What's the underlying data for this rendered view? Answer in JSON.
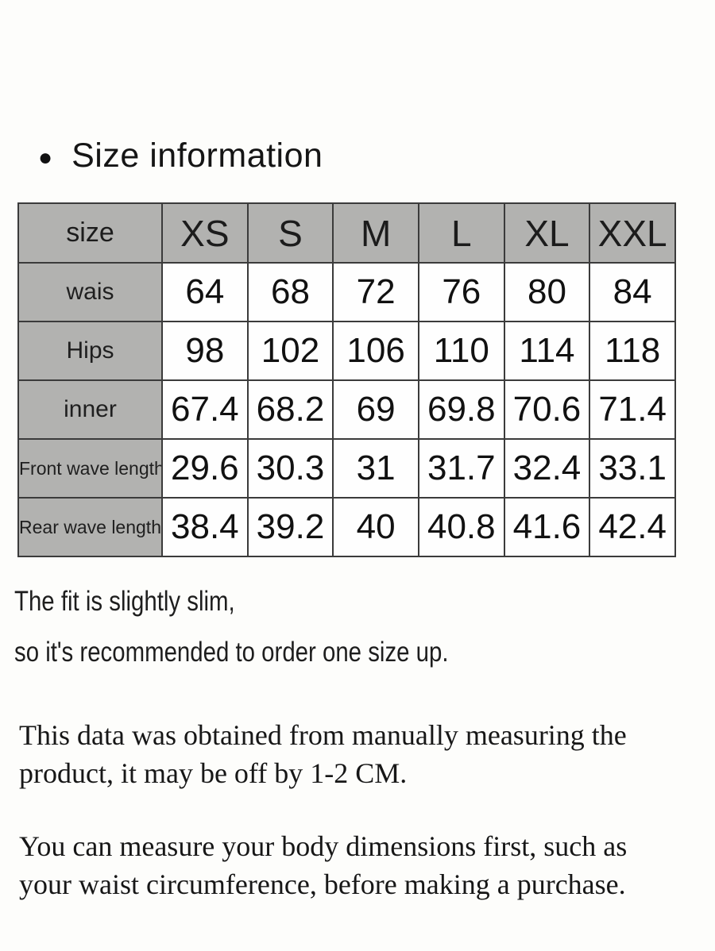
{
  "page": {
    "background": "#fdfdfb",
    "accent_gray": "#b2b2b0",
    "border_color": "#3b3b3b"
  },
  "heading": {
    "bullet_glyph": "●",
    "text": "Size information"
  },
  "size_table": {
    "header": {
      "label": "size",
      "sizes": [
        "XS",
        "S",
        "M",
        "L",
        "XL",
        "XXL"
      ]
    },
    "rows": [
      {
        "label": "wais",
        "values": [
          "64",
          "68",
          "72",
          "76",
          "80",
          "84"
        ]
      },
      {
        "label": "Hips",
        "values": [
          "98",
          "102",
          "106",
          "110",
          "114",
          "118"
        ]
      },
      {
        "label": "inner",
        "values": [
          "67.4",
          "68.2",
          "69",
          "69.8",
          "70.6",
          "71.4"
        ]
      },
      {
        "label": "Front wave length",
        "values": [
          "29.6",
          "30.3",
          "31",
          "31.7",
          "32.4",
          "33.1"
        ]
      },
      {
        "label": "Rear wave length",
        "values": [
          "38.4",
          "39.2",
          "40",
          "40.8",
          "41.6",
          "42.4"
        ]
      }
    ]
  },
  "notes": {
    "fit_line1": "The fit is slightly slim,",
    "fit_line2": "so it's recommended to order one size up.",
    "measure_note": "This data was obtained from manually measuring the product, it may be off by 1-2 CM.",
    "advice_note": "You can measure your body dimensions first, such as your waist circumference, before making a purchase."
  }
}
